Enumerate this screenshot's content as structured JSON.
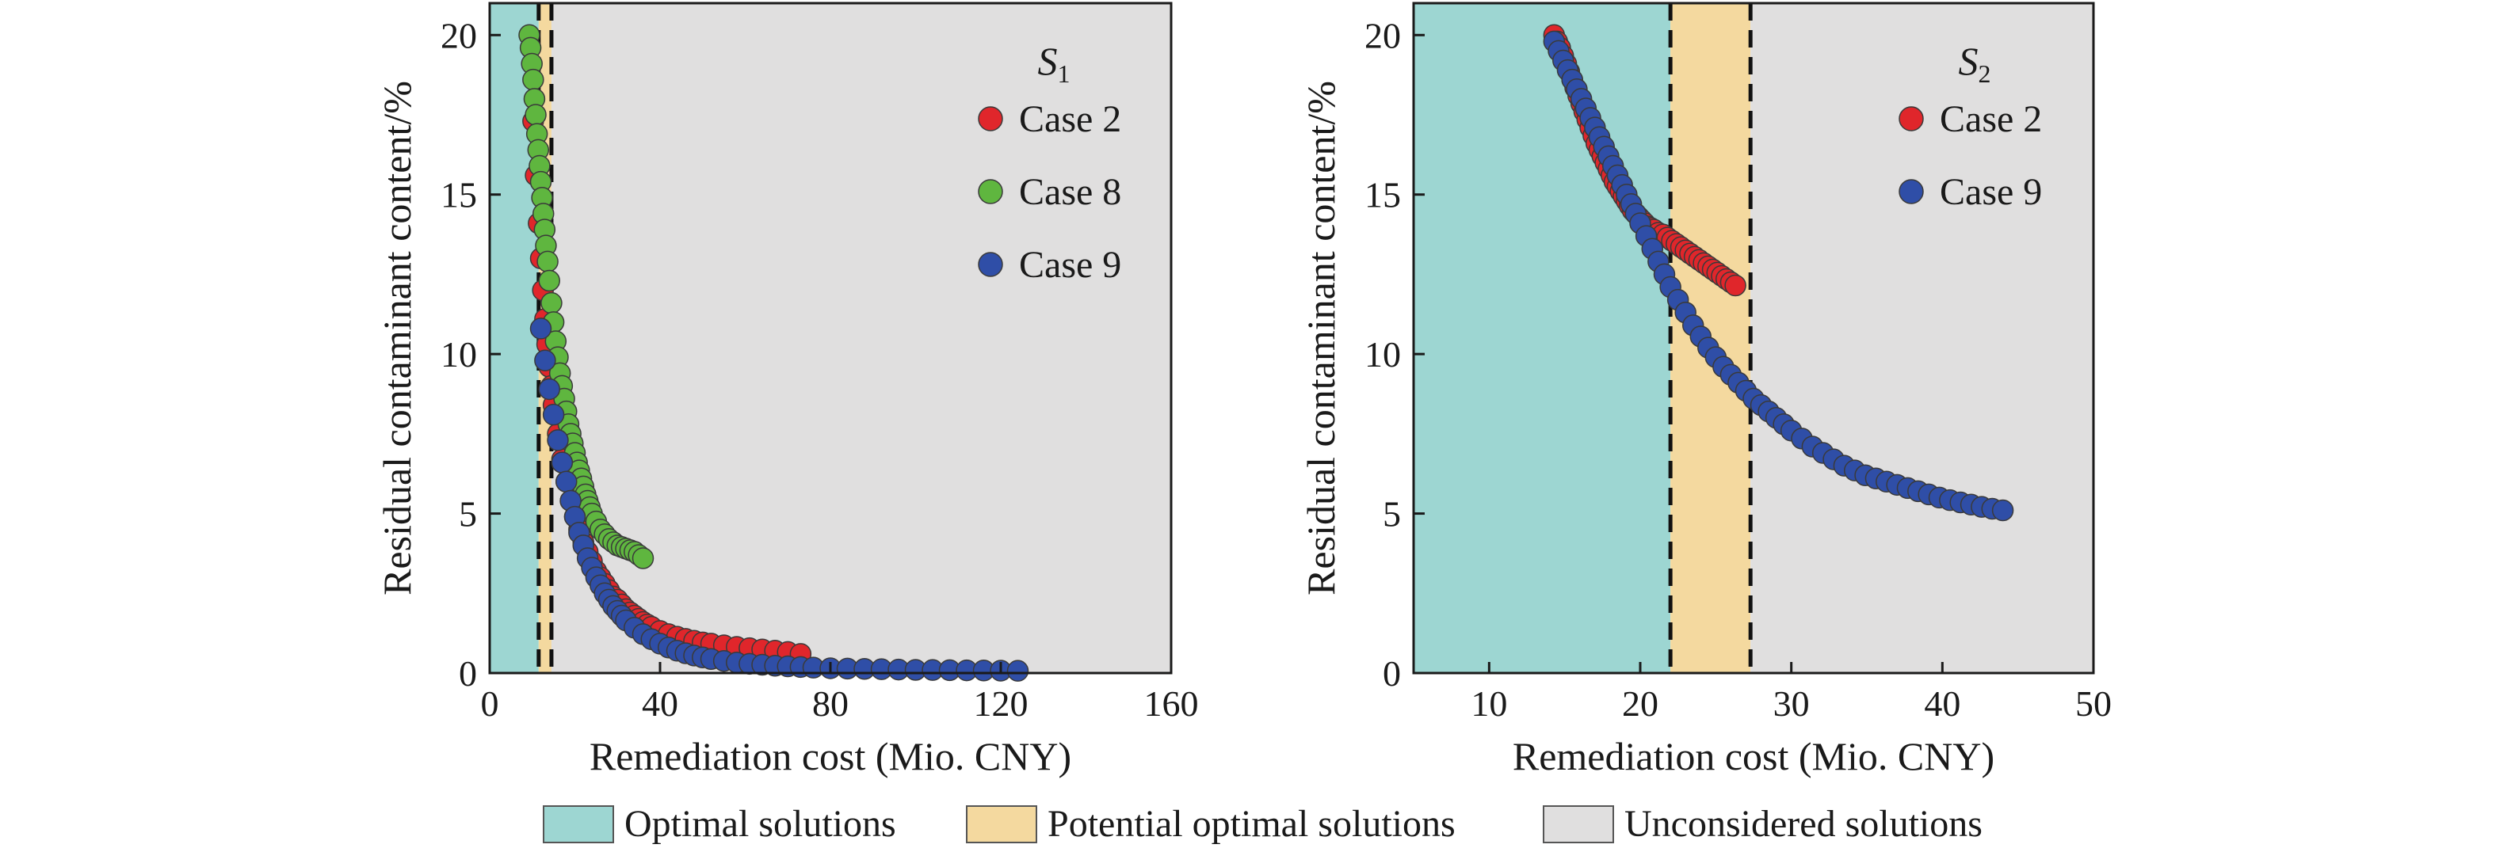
{
  "colors": {
    "optimal": "#9dd6d2",
    "potential": "#f4d99f",
    "unconsidered": "#e0dfdf",
    "case2": "#e0262b",
    "case8": "#5fb63f",
    "case9": "#2f4ea7",
    "boundary": "#111111"
  },
  "legend": {
    "items": [
      {
        "key": "optimal",
        "label": "Optimal solutions"
      },
      {
        "key": "potential",
        "label": "Potential optimal solutions"
      },
      {
        "key": "unconsidered",
        "label": "Unconsidered solutions"
      }
    ]
  },
  "chart_data": [
    {
      "type": "scatter",
      "panel_label": "S",
      "panel_subscript": "1",
      "xlabel": "Remediation cost (Mio. CNY)",
      "ylabel": "Residual contaminant content/%",
      "xlim": [
        0,
        160
      ],
      "ylim": [
        0,
        21
      ],
      "xticks": [
        0,
        40,
        80,
        120,
        160
      ],
      "yticks": [
        0,
        5,
        10,
        15,
        20
      ],
      "regions": [
        {
          "key": "optimal",
          "x": [
            0,
            11.5
          ]
        },
        {
          "key": "potential",
          "x": [
            11.5,
            14.5
          ]
        },
        {
          "key": "unconsidered",
          "x": [
            14.5,
            160
          ]
        }
      ],
      "boundaries_x": [
        11.5,
        14.5
      ],
      "legend_position": "top-right",
      "series": [
        {
          "name": "Case 2",
          "color_key": "case2",
          "x": [
            10.2,
            10.8,
            11.5,
            12.0,
            12.5,
            13.0,
            13.5,
            14.0,
            14.5,
            15.0,
            16.0,
            17.0,
            18.0,
            19.0,
            20.0,
            21.0,
            22.0,
            23.0,
            24.0,
            25.0,
            26.0,
            27.0,
            28.0,
            29.0,
            30.0,
            31.0,
            32.0,
            33.0,
            34.0,
            35.0,
            36.0,
            37.0,
            38.0,
            40.0,
            42.0,
            44.0,
            46.0,
            48.0,
            50.0,
            52.0,
            55.0,
            58.0,
            61.0,
            64.0,
            67.0,
            70.0,
            73.0
          ],
          "y": [
            17.3,
            15.6,
            14.1,
            13.0,
            12.0,
            11.1,
            10.3,
            9.6,
            9.0,
            8.4,
            7.5,
            6.7,
            6.0,
            5.4,
            4.9,
            4.5,
            4.1,
            3.8,
            3.5,
            3.2,
            3.0,
            2.8,
            2.6,
            2.4,
            2.3,
            2.15,
            2.0,
            1.9,
            1.8,
            1.7,
            1.6,
            1.52,
            1.45,
            1.32,
            1.22,
            1.14,
            1.07,
            1.01,
            0.96,
            0.92,
            0.87,
            0.82,
            0.78,
            0.74,
            0.7,
            0.66,
            0.6
          ]
        },
        {
          "name": "Case 8",
          "color_key": "case8",
          "x": [
            9.3,
            9.6,
            9.9,
            10.2,
            10.5,
            10.8,
            11.1,
            11.4,
            11.7,
            12.0,
            12.3,
            12.6,
            12.9,
            13.2,
            13.6,
            14.0,
            14.5,
            15.0,
            15.5,
            16.0,
            16.5,
            17.0,
            17.5,
            18.0,
            18.5,
            19.0,
            19.5,
            20.0,
            20.5,
            21.0,
            21.5,
            22.0,
            22.5,
            23.0,
            23.5,
            24.0,
            25.0,
            26.0,
            27.0,
            28.0,
            29.0,
            30.0,
            31.0,
            32.0,
            33.0,
            34.0,
            35.0,
            36.0
          ],
          "y": [
            20.0,
            19.6,
            19.1,
            18.6,
            18.0,
            17.5,
            16.9,
            16.4,
            15.9,
            15.4,
            14.9,
            14.4,
            13.9,
            13.4,
            12.9,
            12.3,
            11.6,
            11.0,
            10.4,
            9.9,
            9.4,
            9.0,
            8.6,
            8.2,
            7.8,
            7.5,
            7.2,
            6.9,
            6.6,
            6.35,
            6.1,
            5.85,
            5.6,
            5.4,
            5.2,
            5.0,
            4.75,
            4.5,
            4.35,
            4.2,
            4.1,
            4.0,
            3.95,
            3.9,
            3.85,
            3.8,
            3.7,
            3.6
          ]
        },
        {
          "name": "Case 9",
          "color_key": "case9",
          "x": [
            12.0,
            13.0,
            14.0,
            15.0,
            16.0,
            17.0,
            18.0,
            19.0,
            20.0,
            21.0,
            22.0,
            23.0,
            24.0,
            25.0,
            26.0,
            27.0,
            28.0,
            29.0,
            30.0,
            31.0,
            32.0,
            34.0,
            36.0,
            38.0,
            40.0,
            42.0,
            44.0,
            46.0,
            48.0,
            50.0,
            52.0,
            55.0,
            58.0,
            61.0,
            64.0,
            67.0,
            70.0,
            73.0,
            76.0,
            80.0,
            84.0,
            88.0,
            92.0,
            96.0,
            100.0,
            104.0,
            108.0,
            112.0,
            116.0,
            120.0,
            124.0
          ],
          "y": [
            10.8,
            9.8,
            8.9,
            8.1,
            7.3,
            6.6,
            6.0,
            5.4,
            4.9,
            4.4,
            4.0,
            3.6,
            3.3,
            3.0,
            2.75,
            2.5,
            2.3,
            2.1,
            1.95,
            1.8,
            1.65,
            1.42,
            1.22,
            1.06,
            0.92,
            0.8,
            0.7,
            0.62,
            0.55,
            0.49,
            0.44,
            0.38,
            0.33,
            0.29,
            0.26,
            0.23,
            0.21,
            0.19,
            0.17,
            0.15,
            0.14,
            0.13,
            0.12,
            0.11,
            0.1,
            0.095,
            0.09,
            0.085,
            0.08,
            0.075,
            0.07
          ]
        }
      ]
    },
    {
      "type": "scatter",
      "panel_label": "S",
      "panel_subscript": "2",
      "xlabel": "Remediation cost (Mio. CNY)",
      "ylabel": "Residual contaminant content/%",
      "xlim": [
        5,
        50
      ],
      "ylim": [
        0,
        21
      ],
      "xticks": [
        10,
        20,
        30,
        40,
        50
      ],
      "yticks": [
        0,
        5,
        10,
        15,
        20
      ],
      "regions": [
        {
          "key": "optimal",
          "x": [
            5,
            22.0
          ]
        },
        {
          "key": "potential",
          "x": [
            22.0,
            27.3
          ]
        },
        {
          "key": "unconsidered",
          "x": [
            27.3,
            50
          ]
        }
      ],
      "boundaries_x": [
        22.0,
        27.3
      ],
      "legend_position": "top-right",
      "series": [
        {
          "name": "Case 2",
          "color_key": "case2",
          "x": [
            14.3,
            14.5,
            14.7,
            14.9,
            15.1,
            15.3,
            15.5,
            15.7,
            15.9,
            16.1,
            16.3,
            16.5,
            16.7,
            16.9,
            17.1,
            17.3,
            17.5,
            17.7,
            17.9,
            18.1,
            18.3,
            18.5,
            18.7,
            18.9,
            19.1,
            19.3,
            19.5,
            19.7,
            19.9,
            20.1,
            20.3,
            20.5,
            20.7,
            20.9,
            21.2,
            21.5,
            21.8,
            22.1,
            22.4,
            22.7,
            23.0,
            23.3,
            23.6,
            23.9,
            24.2,
            24.5,
            24.8,
            25.1,
            25.4,
            25.7,
            26.0,
            26.3
          ],
          "y": [
            20.0,
            19.8,
            19.6,
            19.35,
            19.1,
            18.85,
            18.6,
            18.35,
            18.1,
            17.85,
            17.6,
            17.35,
            17.1,
            16.85,
            16.6,
            16.4,
            16.2,
            16.0,
            15.8,
            15.6,
            15.4,
            15.25,
            15.1,
            14.95,
            14.8,
            14.65,
            14.5,
            14.4,
            14.3,
            14.2,
            14.1,
            14.0,
            13.95,
            13.9,
            13.8,
            13.75,
            13.65,
            13.55,
            13.45,
            13.35,
            13.25,
            13.15,
            13.05,
            12.95,
            12.85,
            12.75,
            12.65,
            12.55,
            12.45,
            12.35,
            12.25,
            12.15
          ]
        },
        {
          "name": "Case 9",
          "color_key": "case9",
          "x": [
            14.3,
            14.6,
            14.9,
            15.2,
            15.5,
            15.8,
            16.1,
            16.4,
            16.7,
            17.0,
            17.3,
            17.6,
            17.9,
            18.2,
            18.5,
            18.8,
            19.1,
            19.4,
            19.7,
            20.0,
            20.4,
            20.8,
            21.2,
            21.6,
            22.0,
            22.5,
            23.0,
            23.5,
            24.0,
            24.5,
            25.0,
            25.5,
            26.0,
            26.5,
            27.0,
            27.5,
            28.0,
            28.5,
            29.0,
            29.5,
            30.0,
            30.7,
            31.4,
            32.1,
            32.8,
            33.5,
            34.2,
            34.9,
            35.6,
            36.3,
            37.0,
            37.7,
            38.4,
            39.1,
            39.8,
            40.5,
            41.2,
            41.9,
            42.6,
            43.3,
            44.0
          ],
          "y": [
            19.8,
            19.5,
            19.2,
            18.9,
            18.6,
            18.3,
            18.0,
            17.7,
            17.4,
            17.1,
            16.8,
            16.5,
            16.2,
            15.9,
            15.6,
            15.3,
            15.0,
            14.7,
            14.4,
            14.1,
            13.7,
            13.3,
            12.9,
            12.5,
            12.1,
            11.7,
            11.3,
            10.9,
            10.55,
            10.2,
            9.9,
            9.6,
            9.35,
            9.1,
            8.85,
            8.6,
            8.4,
            8.2,
            8.0,
            7.8,
            7.6,
            7.35,
            7.1,
            6.9,
            6.7,
            6.5,
            6.35,
            6.2,
            6.1,
            6.0,
            5.9,
            5.8,
            5.7,
            5.6,
            5.5,
            5.42,
            5.35,
            5.28,
            5.21,
            5.15,
            5.1
          ]
        }
      ]
    }
  ]
}
